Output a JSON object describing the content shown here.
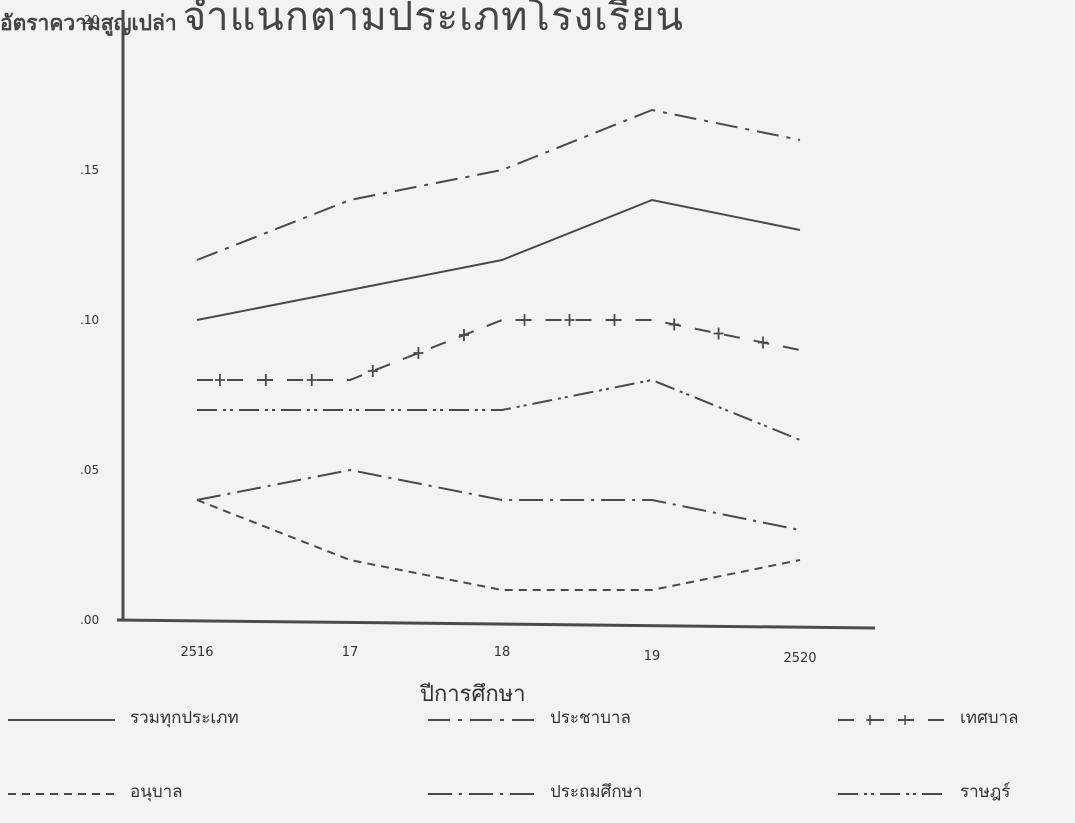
{
  "title": {
    "bold": "อัตราความสูญเปล่า",
    "light": "จำแนกตามประเภทโรงเรียน"
  },
  "chart_data": {
    "type": "line",
    "xlabel": "ปีการศึกษา",
    "ylabel": "",
    "categories": [
      "2516",
      "17",
      "18",
      "19",
      "2520"
    ],
    "y_ticks": [
      ".00",
      ".05",
      ".10",
      ".15",
      ".20"
    ],
    "ylim": [
      0,
      0.2
    ],
    "grid": false,
    "legend_position": "bottom",
    "series": [
      {
        "name": "รวมทุกประเภท",
        "style": "solid",
        "values": [
          0.1,
          0.11,
          0.12,
          0.14,
          0.13
        ]
      },
      {
        "name": "ประชาบาล",
        "style": "dash-dot",
        "values": [
          0.12,
          0.14,
          0.15,
          0.17,
          0.16
        ]
      },
      {
        "name": "เทศบาล",
        "style": "plus",
        "values": [
          0.08,
          0.08,
          0.1,
          0.1,
          0.09
        ]
      },
      {
        "name": "อนุบาล",
        "style": "dashed",
        "values": [
          0.04,
          0.02,
          0.01,
          0.01,
          0.02
        ]
      },
      {
        "name": "ประถมศึกษา",
        "style": "dot-dash",
        "values": [
          0.04,
          0.05,
          0.04,
          0.04,
          0.03
        ]
      },
      {
        "name": "ราษฎร์",
        "style": "dash-dot-dot",
        "values": [
          0.07,
          0.07,
          0.07,
          0.08,
          0.06
        ]
      }
    ]
  }
}
